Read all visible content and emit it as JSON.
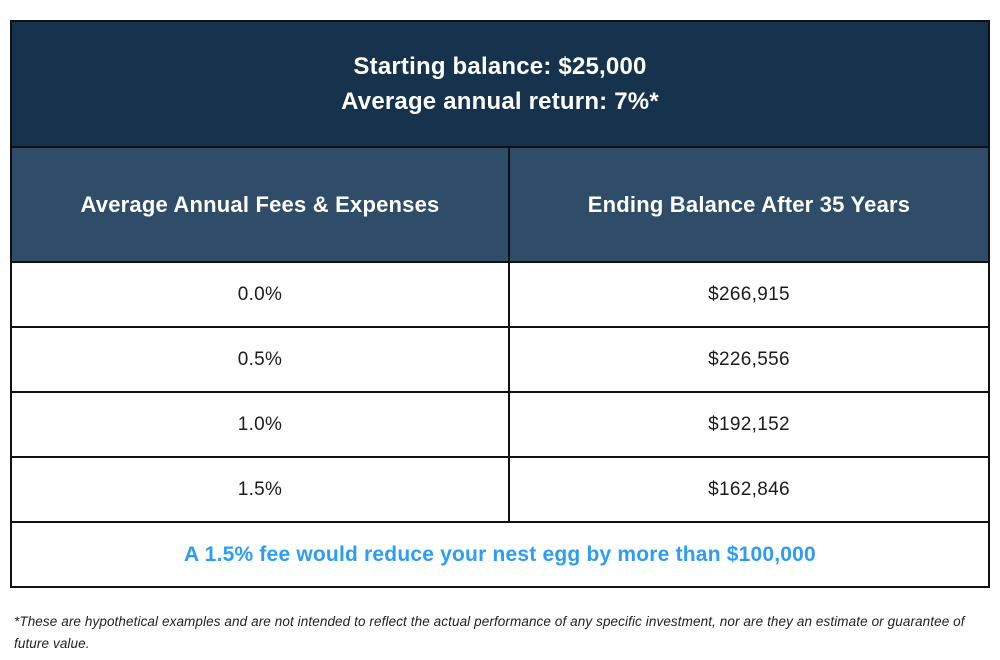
{
  "chart_data": {
    "type": "table",
    "title": "Starting balance: $25,000 | Average annual return: 7%*",
    "columns": [
      "Average Annual Fees & Expenses",
      "Ending Balance After 35 Years"
    ],
    "rows": [
      [
        "0.0%",
        "$266,915"
      ],
      [
        "0.5%",
        "$226,556"
      ],
      [
        "1.0%",
        "$192,152"
      ],
      [
        "1.5%",
        "$162,846"
      ]
    ],
    "starting_balance": 25000,
    "annual_return_pct": 7,
    "fees_pct": [
      0.0,
      0.5,
      1.0,
      1.5
    ],
    "ending_balances": [
      266915,
      226556,
      192152,
      162846
    ],
    "annotation": "A 1.5% fee would reduce your nest egg by more than $100,000",
    "footnote": "*These are hypothetical examples and are not intended to reflect the actual performance of any specific investment, nor are they an estimate or guarantee of future value."
  },
  "table": {
    "header": {
      "line1": "Starting balance: $25,000",
      "line2": "Average annual return: 7%*"
    },
    "columns": {
      "fees": "Average Annual Fees & Expenses",
      "balance": "Ending Balance After 35 Years"
    },
    "rows": [
      {
        "fee": "0.0%",
        "balance": "$266,915"
      },
      {
        "fee": "0.5%",
        "balance": "$226,556"
      },
      {
        "fee": "1.0%",
        "balance": "$192,152"
      },
      {
        "fee": "1.5%",
        "balance": "$162,846"
      }
    ],
    "callout": "A 1.5% fee would reduce your nest egg by more than $100,000"
  },
  "footnote": "*These are hypothetical examples and are not intended to reflect the actual performance of any specific investment, nor are they an estimate or guarantee of future value.",
  "colors": {
    "header_bg": "#16324C",
    "subheader_bg": "#2F4D68",
    "callout_text": "#2D9CF4",
    "border": "#111111",
    "cell_text": "#1C1C1C",
    "header_text": "#FFFFFF"
  }
}
